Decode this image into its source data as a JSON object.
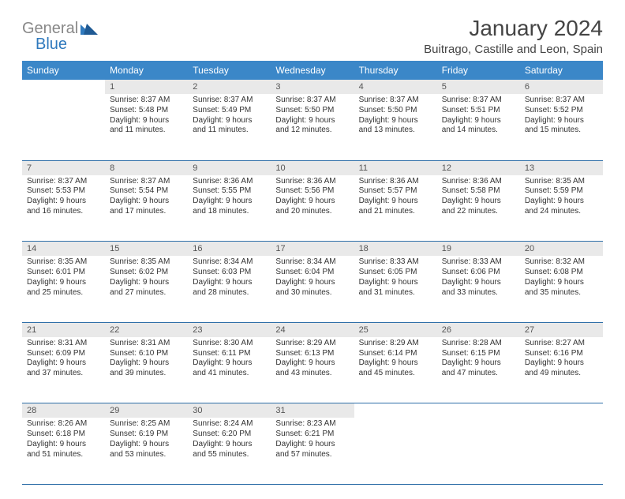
{
  "brand": {
    "general": "General",
    "blue": "Blue"
  },
  "header": {
    "title": "January 2024",
    "location": "Buitrago, Castille and Leon, Spain"
  },
  "colors": {
    "header_bg": "#3b87c8",
    "header_fg": "#ffffff",
    "daynum_bg": "#e9e9e9",
    "rule": "#2f6fa8",
    "logo_gray": "#888888",
    "logo_blue": "#2f79bd"
  },
  "weekdays": [
    "Sunday",
    "Monday",
    "Tuesday",
    "Wednesday",
    "Thursday",
    "Friday",
    "Saturday"
  ],
  "weeks": [
    [
      null,
      {
        "n": "1",
        "sunrise": "Sunrise: 8:37 AM",
        "sunset": "Sunset: 5:48 PM",
        "day1": "Daylight: 9 hours",
        "day2": "and 11 minutes."
      },
      {
        "n": "2",
        "sunrise": "Sunrise: 8:37 AM",
        "sunset": "Sunset: 5:49 PM",
        "day1": "Daylight: 9 hours",
        "day2": "and 11 minutes."
      },
      {
        "n": "3",
        "sunrise": "Sunrise: 8:37 AM",
        "sunset": "Sunset: 5:50 PM",
        "day1": "Daylight: 9 hours",
        "day2": "and 12 minutes."
      },
      {
        "n": "4",
        "sunrise": "Sunrise: 8:37 AM",
        "sunset": "Sunset: 5:50 PM",
        "day1": "Daylight: 9 hours",
        "day2": "and 13 minutes."
      },
      {
        "n": "5",
        "sunrise": "Sunrise: 8:37 AM",
        "sunset": "Sunset: 5:51 PM",
        "day1": "Daylight: 9 hours",
        "day2": "and 14 minutes."
      },
      {
        "n": "6",
        "sunrise": "Sunrise: 8:37 AM",
        "sunset": "Sunset: 5:52 PM",
        "day1": "Daylight: 9 hours",
        "day2": "and 15 minutes."
      }
    ],
    [
      {
        "n": "7",
        "sunrise": "Sunrise: 8:37 AM",
        "sunset": "Sunset: 5:53 PM",
        "day1": "Daylight: 9 hours",
        "day2": "and 16 minutes."
      },
      {
        "n": "8",
        "sunrise": "Sunrise: 8:37 AM",
        "sunset": "Sunset: 5:54 PM",
        "day1": "Daylight: 9 hours",
        "day2": "and 17 minutes."
      },
      {
        "n": "9",
        "sunrise": "Sunrise: 8:36 AM",
        "sunset": "Sunset: 5:55 PM",
        "day1": "Daylight: 9 hours",
        "day2": "and 18 minutes."
      },
      {
        "n": "10",
        "sunrise": "Sunrise: 8:36 AM",
        "sunset": "Sunset: 5:56 PM",
        "day1": "Daylight: 9 hours",
        "day2": "and 20 minutes."
      },
      {
        "n": "11",
        "sunrise": "Sunrise: 8:36 AM",
        "sunset": "Sunset: 5:57 PM",
        "day1": "Daylight: 9 hours",
        "day2": "and 21 minutes."
      },
      {
        "n": "12",
        "sunrise": "Sunrise: 8:36 AM",
        "sunset": "Sunset: 5:58 PM",
        "day1": "Daylight: 9 hours",
        "day2": "and 22 minutes."
      },
      {
        "n": "13",
        "sunrise": "Sunrise: 8:35 AM",
        "sunset": "Sunset: 5:59 PM",
        "day1": "Daylight: 9 hours",
        "day2": "and 24 minutes."
      }
    ],
    [
      {
        "n": "14",
        "sunrise": "Sunrise: 8:35 AM",
        "sunset": "Sunset: 6:01 PM",
        "day1": "Daylight: 9 hours",
        "day2": "and 25 minutes."
      },
      {
        "n": "15",
        "sunrise": "Sunrise: 8:35 AM",
        "sunset": "Sunset: 6:02 PM",
        "day1": "Daylight: 9 hours",
        "day2": "and 27 minutes."
      },
      {
        "n": "16",
        "sunrise": "Sunrise: 8:34 AM",
        "sunset": "Sunset: 6:03 PM",
        "day1": "Daylight: 9 hours",
        "day2": "and 28 minutes."
      },
      {
        "n": "17",
        "sunrise": "Sunrise: 8:34 AM",
        "sunset": "Sunset: 6:04 PM",
        "day1": "Daylight: 9 hours",
        "day2": "and 30 minutes."
      },
      {
        "n": "18",
        "sunrise": "Sunrise: 8:33 AM",
        "sunset": "Sunset: 6:05 PM",
        "day1": "Daylight: 9 hours",
        "day2": "and 31 minutes."
      },
      {
        "n": "19",
        "sunrise": "Sunrise: 8:33 AM",
        "sunset": "Sunset: 6:06 PM",
        "day1": "Daylight: 9 hours",
        "day2": "and 33 minutes."
      },
      {
        "n": "20",
        "sunrise": "Sunrise: 8:32 AM",
        "sunset": "Sunset: 6:08 PM",
        "day1": "Daylight: 9 hours",
        "day2": "and 35 minutes."
      }
    ],
    [
      {
        "n": "21",
        "sunrise": "Sunrise: 8:31 AM",
        "sunset": "Sunset: 6:09 PM",
        "day1": "Daylight: 9 hours",
        "day2": "and 37 minutes."
      },
      {
        "n": "22",
        "sunrise": "Sunrise: 8:31 AM",
        "sunset": "Sunset: 6:10 PM",
        "day1": "Daylight: 9 hours",
        "day2": "and 39 minutes."
      },
      {
        "n": "23",
        "sunrise": "Sunrise: 8:30 AM",
        "sunset": "Sunset: 6:11 PM",
        "day1": "Daylight: 9 hours",
        "day2": "and 41 minutes."
      },
      {
        "n": "24",
        "sunrise": "Sunrise: 8:29 AM",
        "sunset": "Sunset: 6:13 PM",
        "day1": "Daylight: 9 hours",
        "day2": "and 43 minutes."
      },
      {
        "n": "25",
        "sunrise": "Sunrise: 8:29 AM",
        "sunset": "Sunset: 6:14 PM",
        "day1": "Daylight: 9 hours",
        "day2": "and 45 minutes."
      },
      {
        "n": "26",
        "sunrise": "Sunrise: 8:28 AM",
        "sunset": "Sunset: 6:15 PM",
        "day1": "Daylight: 9 hours",
        "day2": "and 47 minutes."
      },
      {
        "n": "27",
        "sunrise": "Sunrise: 8:27 AM",
        "sunset": "Sunset: 6:16 PM",
        "day1": "Daylight: 9 hours",
        "day2": "and 49 minutes."
      }
    ],
    [
      {
        "n": "28",
        "sunrise": "Sunrise: 8:26 AM",
        "sunset": "Sunset: 6:18 PM",
        "day1": "Daylight: 9 hours",
        "day2": "and 51 minutes."
      },
      {
        "n": "29",
        "sunrise": "Sunrise: 8:25 AM",
        "sunset": "Sunset: 6:19 PM",
        "day1": "Daylight: 9 hours",
        "day2": "and 53 minutes."
      },
      {
        "n": "30",
        "sunrise": "Sunrise: 8:24 AM",
        "sunset": "Sunset: 6:20 PM",
        "day1": "Daylight: 9 hours",
        "day2": "and 55 minutes."
      },
      {
        "n": "31",
        "sunrise": "Sunrise: 8:23 AM",
        "sunset": "Sunset: 6:21 PM",
        "day1": "Daylight: 9 hours",
        "day2": "and 57 minutes."
      },
      null,
      null,
      null
    ]
  ]
}
